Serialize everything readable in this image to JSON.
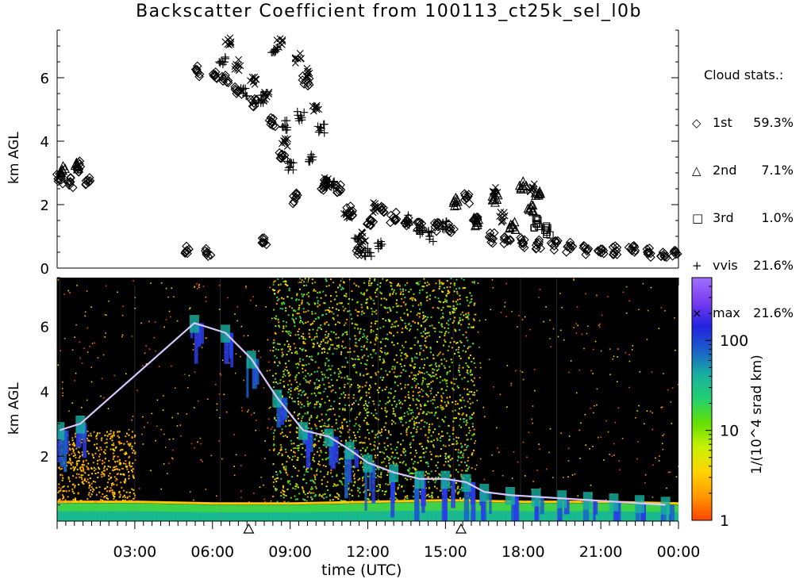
{
  "title": "Backscatter Coefficient from 100113_ct25k_sel_l0b",
  "legend": {
    "title": "Cloud stats.:",
    "entries": [
      {
        "symbol": "◇",
        "label": "1st",
        "value": "59.3%"
      },
      {
        "symbol": "△",
        "label": "2nd",
        "value": "7.1%"
      },
      {
        "symbol": "□",
        "label": "3rd",
        "value": "1.0%"
      },
      {
        "symbol": "+",
        "label": "vvis",
        "value": "21.6%"
      },
      {
        "symbol": "×",
        "label": "max",
        "value": "21.6%"
      }
    ]
  },
  "colorbar": {
    "label": "1/(10^4 srad km)",
    "ticks": [
      "1",
      "10",
      "100"
    ],
    "colors": [
      "#ff4400",
      "#ff9900",
      "#ffd400",
      "#c8f000",
      "#64e000",
      "#22d070",
      "#18b0a0",
      "#1a60c8",
      "#2222e0",
      "#7a3cf0",
      "#a070ff"
    ]
  },
  "chart_data": [
    {
      "type": "scatter",
      "panel": "cloud-stats",
      "title": "Backscatter Coefficient from 100113_ct25k_sel_l0b",
      "xlabel": "",
      "ylabel": "km AGL",
      "xlim": [
        0,
        24
      ],
      "ylim": [
        0,
        7.5
      ],
      "yticks": [
        0,
        2,
        4,
        6
      ],
      "series": [
        {
          "name": "1st",
          "marker": "diamond",
          "x": [
            0.1,
            0.5,
            0.9,
            1.2,
            5.0,
            5.4,
            5.8,
            6.1,
            6.5,
            7.0,
            7.6,
            8.0,
            8.3,
            8.7,
            9.2,
            9.6,
            10.3,
            10.9,
            11.3,
            11.7,
            12.1,
            12.6,
            13.0,
            13.5,
            14.0,
            14.6,
            15.2,
            15.8,
            16.2,
            16.8,
            17.4,
            18.0,
            18.6,
            19.2,
            19.8,
            20.4,
            21.0,
            21.6,
            22.2,
            22.8,
            23.4,
            23.9
          ],
          "y": [
            2.8,
            2.7,
            3.2,
            2.7,
            0.55,
            6.2,
            0.5,
            6.1,
            6.0,
            5.6,
            5.2,
            0.8,
            4.6,
            3.5,
            2.2,
            5.9,
            2.6,
            2.5,
            1.8,
            0.6,
            1.5,
            1.9,
            1.6,
            1.5,
            1.35,
            1.3,
            1.25,
            2.2,
            1.6,
            0.95,
            0.85,
            0.8,
            0.75,
            0.7,
            0.65,
            0.6,
            0.6,
            0.55,
            0.55,
            0.5,
            0.5,
            0.5
          ]
        },
        {
          "name": "2nd",
          "marker": "triangle",
          "x": [
            0.2,
            0.8,
            15.4,
            16.2,
            16.9,
            17.6,
            18.0,
            18.3,
            18.6
          ],
          "y": [
            3.1,
            3.2,
            2.1,
            1.5,
            2.2,
            1.3,
            2.6,
            1.9,
            2.3
          ]
        },
        {
          "name": "3rd",
          "marker": "square",
          "x": [
            18.5,
            18.9
          ],
          "y": [
            1.4,
            1.2
          ]
        },
        {
          "name": "vvis",
          "marker": "plus",
          "x": [
            6.4,
            7.2,
            7.9,
            8.4,
            8.8,
            9.0,
            9.4,
            9.8,
            10.2,
            10.6,
            11.6,
            12.0,
            12.5,
            13.5,
            14.0,
            14.4,
            15.0
          ],
          "y": [
            6.5,
            5.5,
            5.3,
            6.8,
            4.5,
            3.2,
            4.8,
            3.5,
            4.4,
            2.6,
            0.9,
            0.5,
            0.7,
            1.5,
            1.2,
            1.0,
            1.3
          ]
        },
        {
          "name": "max",
          "marker": "cross",
          "x": [
            6.6,
            7.0,
            7.6,
            8.1,
            8.6,
            8.8,
            9.3,
            9.7,
            10.0,
            10.4,
            11.2,
            11.8,
            12.3,
            16.9,
            17.2,
            18.4
          ],
          "y": [
            7.2,
            6.4,
            5.9,
            5.4,
            7.1,
            4.0,
            6.6,
            6.2,
            5.1,
            2.7,
            1.6,
            1.0,
            1.9,
            2.4,
            1.6,
            2.5
          ]
        }
      ]
    },
    {
      "type": "heatmap",
      "panel": "backscatter",
      "xlabel": "time (UTC)",
      "ylabel": "km AGL",
      "xlim": [
        0,
        24
      ],
      "ylim": [
        0,
        7.5
      ],
      "yticks": [
        2,
        4,
        6
      ],
      "xticks": [
        "03:00",
        "06:00",
        "09:00",
        "12:00",
        "15:00",
        "18:00",
        "21:00",
        "00:00"
      ],
      "xtick_values": [
        3,
        6,
        9,
        12,
        15,
        18,
        21,
        24
      ],
      "colorscale": "log",
      "clim": [
        1,
        500
      ],
      "boundary_layer_top_km": [
        [
          0,
          0.55
        ],
        [
          3,
          0.55
        ],
        [
          6,
          0.5
        ],
        [
          9,
          0.5
        ],
        [
          12,
          0.55
        ],
        [
          15,
          0.6
        ],
        [
          18,
          0.55
        ],
        [
          21,
          0.55
        ],
        [
          24,
          0.5
        ]
      ],
      "cloud_base_km": [
        [
          0.1,
          2.8
        ],
        [
          0.9,
          3.0
        ],
        [
          5.3,
          6.1
        ],
        [
          6.5,
          5.8
        ],
        [
          7.5,
          5.0
        ],
        [
          8.5,
          3.8
        ],
        [
          9.5,
          2.8
        ],
        [
          10.5,
          2.6
        ],
        [
          11.3,
          2.2
        ],
        [
          12.0,
          1.8
        ],
        [
          13.0,
          1.5
        ],
        [
          14.0,
          1.3
        ],
        [
          15.0,
          1.3
        ],
        [
          15.8,
          1.2
        ],
        [
          16.5,
          0.9
        ],
        [
          17.5,
          0.8
        ],
        [
          18.5,
          0.75
        ],
        [
          19.5,
          0.7
        ],
        [
          20.5,
          0.65
        ],
        [
          21.5,
          0.6
        ],
        [
          22.5,
          0.55
        ],
        [
          23.5,
          0.5
        ]
      ],
      "flag_times": [
        7.4,
        15.6
      ]
    }
  ]
}
